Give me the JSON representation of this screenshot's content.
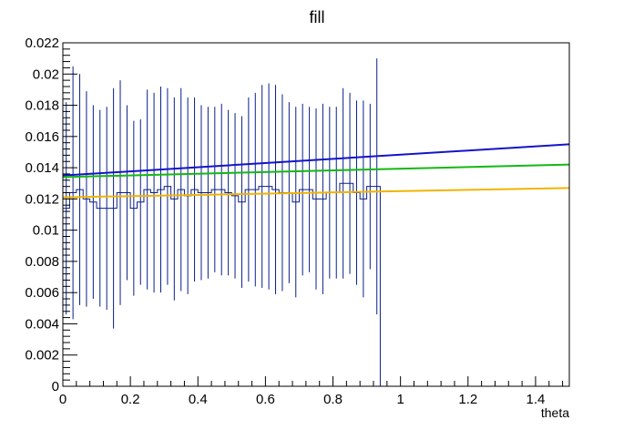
{
  "chart_data": {
    "type": "line",
    "title": "fill",
    "xlabel": "theta",
    "ylabel": "",
    "xlim": [
      0,
      1.5
    ],
    "ylim": [
      0,
      0.022
    ],
    "x_ticks": [
      0,
      0.2,
      0.4,
      0.6,
      0.8,
      1,
      1.2,
      1.4
    ],
    "x_tick_labels": [
      "0",
      "0.2",
      "0.4",
      "0.6",
      "0.8",
      "1",
      "1.2",
      "1.4"
    ],
    "y_ticks": [
      0,
      0.002,
      0.004,
      0.006,
      0.008,
      0.01,
      0.012,
      0.014,
      0.016,
      0.018,
      0.02,
      0.022
    ],
    "y_tick_labels": [
      "0",
      "0.002",
      "0.004",
      "0.006",
      "0.008",
      "0.01",
      "0.012",
      "0.014",
      "0.016",
      "0.018",
      "0.02",
      "0.022"
    ],
    "grid": false,
    "legend": "none",
    "histogram": {
      "color": "#0b1f8a",
      "bin_edges": [
        0,
        0.02,
        0.04,
        0.06,
        0.08,
        0.1,
        0.12,
        0.14,
        0.16,
        0.18,
        0.2,
        0.22,
        0.24,
        0.26,
        0.28,
        0.3,
        0.32,
        0.34,
        0.36,
        0.38,
        0.4,
        0.42,
        0.44,
        0.46,
        0.48,
        0.5,
        0.52,
        0.54,
        0.56,
        0.58,
        0.6,
        0.62,
        0.64,
        0.66,
        0.68,
        0.7,
        0.72,
        0.74,
        0.76,
        0.78,
        0.8,
        0.82,
        0.84,
        0.86,
        0.88,
        0.9,
        0.92,
        0.94,
        0.96
      ],
      "values": [
        0.0114,
        0.0124,
        0.0126,
        0.012,
        0.0118,
        0.0114,
        0.0114,
        0.0114,
        0.0124,
        0.0124,
        0.0114,
        0.0118,
        0.0126,
        0.0124,
        0.0126,
        0.0128,
        0.012,
        0.0126,
        0.0122,
        0.0126,
        0.0124,
        0.0124,
        0.0126,
        0.0126,
        0.0124,
        0.0122,
        0.0118,
        0.0126,
        0.0126,
        0.0128,
        0.0128,
        0.0126,
        0.0124,
        0.0124,
        0.0118,
        0.0126,
        0.0126,
        0.012,
        0.012,
        0.0124,
        0.0124,
        0.013,
        0.013,
        0.0124,
        0.012,
        0.0128,
        0.0128,
        0.0
      ],
      "errors": [
        0.0068,
        0.0081,
        0.0074,
        0.0069,
        0.0062,
        0.0063,
        0.0065,
        0.0077,
        0.0072,
        0.0056,
        0.0056,
        0.0053,
        0.0064,
        0.0064,
        0.0066,
        0.0063,
        0.0065,
        0.0065,
        0.0063,
        0.0059,
        0.0056,
        0.0055,
        0.0053,
        0.0055,
        0.0053,
        0.0053,
        0.0055,
        0.0059,
        0.0062,
        0.0065,
        0.0066,
        0.0067,
        0.0063,
        0.0058,
        0.0061,
        0.0055,
        0.0053,
        0.0058,
        0.0061,
        0.0055,
        0.0055,
        0.0061,
        0.0058,
        0.0059,
        0.0063,
        0.0053,
        0.0082,
        0.0
      ]
    },
    "series": [
      {
        "color": "#1414c8",
        "x": [
          0,
          1.5
        ],
        "y": [
          0.0135,
          0.0155
        ]
      },
      {
        "color": "#14b814",
        "x": [
          0,
          1.5
        ],
        "y": [
          0.0134,
          0.0142
        ]
      },
      {
        "color": "#f0b400",
        "x": [
          0,
          1.5
        ],
        "y": [
          0.0121,
          0.0127
        ]
      }
    ]
  }
}
